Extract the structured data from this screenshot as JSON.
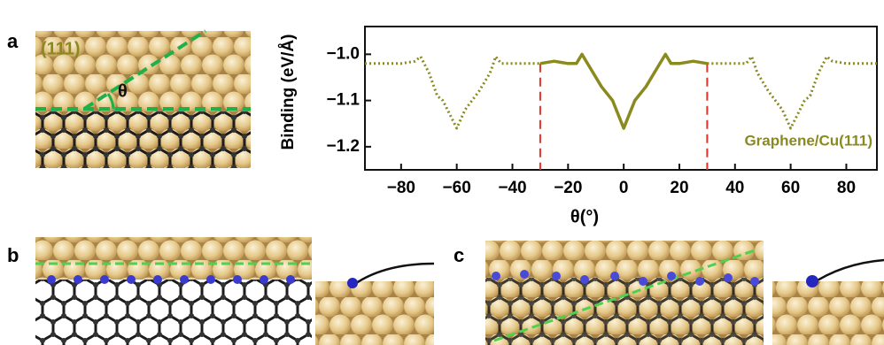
{
  "panel_labels": [
    "a",
    "b",
    "c"
  ],
  "panel_a": {
    "facet": "(111)",
    "angle": "θ"
  },
  "chart_data": {
    "type": "line",
    "xlabel": "θ(°)",
    "ylabel": "Binding (eV/Å)",
    "annotation": "Graphene/Cu(111)",
    "xlim": [
      -93,
      91
    ],
    "ylim": [
      -1.25,
      -0.94
    ],
    "xticks": [
      {
        "value": -80,
        "label": "−80"
      },
      {
        "value": -60,
        "label": "−60"
      },
      {
        "value": -40,
        "label": "−40"
      },
      {
        "value": -20,
        "label": "−20"
      },
      0,
      20,
      40,
      60,
      80
    ],
    "yticks": [
      {
        "value": -1.0,
        "label": "−1.0"
      },
      {
        "value": -1.1,
        "label": "−1.1"
      },
      {
        "value": -1.2,
        "label": "−1.2"
      }
    ],
    "vlines": [
      -30,
      30
    ],
    "vline_color": "#e8302a",
    "series": [
      {
        "color": "#8a8a1e",
        "style": "dotted",
        "x": [
          -93,
          -80,
          -75,
          -73,
          -70,
          -67,
          -65,
          -60,
          -57,
          -52,
          -48,
          -46,
          -44,
          -40,
          -35,
          -30
        ],
        "values": [
          -1.02,
          -1.02,
          -1.015,
          -1.005,
          -1.04,
          -1.09,
          -1.1,
          -1.16,
          -1.12,
          -1.08,
          -1.04,
          -1.005,
          -1.02,
          -1.02,
          -1.02,
          -1.02
        ]
      },
      {
        "color": "#8a8a1e",
        "style": "solid",
        "x": [
          -30,
          -25,
          -20,
          -17,
          -15,
          -12,
          -8,
          -4,
          0,
          4,
          8,
          12,
          15,
          17,
          20,
          25,
          30
        ],
        "values": [
          -1.02,
          -1.015,
          -1.02,
          -1.02,
          -1.0,
          -1.03,
          -1.07,
          -1.1,
          -1.16,
          -1.1,
          -1.07,
          -1.03,
          -1.0,
          -1.02,
          -1.02,
          -1.015,
          -1.02
        ]
      },
      {
        "color": "#8a8a1e",
        "style": "dotted",
        "x": [
          30,
          35,
          40,
          44,
          46,
          48,
          52,
          57,
          60,
          65,
          67,
          70,
          73,
          75,
          80,
          91
        ],
        "values": [
          -1.02,
          -1.02,
          -1.02,
          -1.02,
          -1.005,
          -1.04,
          -1.08,
          -1.12,
          -1.16,
          -1.1,
          -1.09,
          -1.04,
          -1.005,
          -1.015,
          -1.02,
          -1.02
        ]
      }
    ]
  }
}
